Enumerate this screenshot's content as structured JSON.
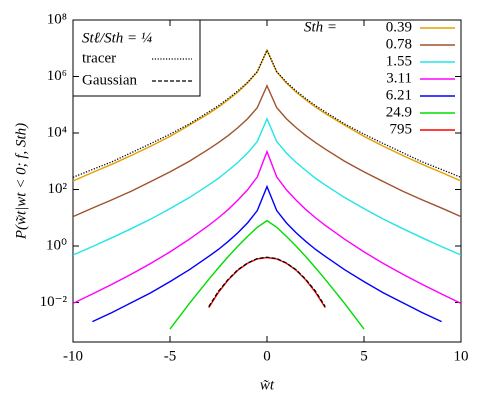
{
  "chart_data": {
    "type": "line",
    "xlabel": "w̃t",
    "ylabel": "P(w̃t|wt < 0; f, Sth)",
    "annotation": "Stℓ/Sth = ¼",
    "legend_title": "Sth =",
    "log_y": true,
    "x": [
      -10,
      -9,
      -8,
      -7,
      -6,
      -5,
      -4,
      -3,
      -2.5,
      -2,
      -1.5,
      -1,
      -0.5,
      0,
      0.5,
      1,
      1.5,
      2,
      2.5,
      3,
      4,
      5,
      6,
      7,
      8,
      9,
      10
    ],
    "series": [
      {
        "name": "0.39",
        "color": "#e69f00",
        "values": [
          200,
          400,
          780,
          1600,
          3400,
          7600,
          19000,
          49000,
          83000,
          150000,
          280000,
          590000,
          1450000,
          8500000,
          1450000,
          590000,
          280000,
          150000,
          83000,
          49000,
          19000,
          7600,
          3400,
          1600,
          780,
          400,
          200
        ]
      },
      {
        "name": "0.78",
        "color": "#a0522d",
        "values": [
          11,
          22,
          43,
          87,
          190,
          420,
          1000,
          2700,
          4600,
          8100,
          15500,
          32000,
          79000,
          470000,
          79000,
          32000,
          15500,
          8100,
          4600,
          2700,
          1000,
          420,
          190,
          87,
          43,
          22,
          11
        ]
      },
      {
        "name": "1.55",
        "color": "#22e5e5",
        "values": [
          0.48,
          0.95,
          1.95,
          4.1,
          8.9,
          21,
          52,
          145,
          250,
          470,
          910,
          1950,
          5000,
          32000,
          5000,
          1950,
          910,
          470,
          250,
          145,
          52,
          21,
          8.9,
          4.1,
          1.95,
          0.95,
          0.48
        ]
      },
      {
        "name": "3.11",
        "color": "#ff00ff",
        "values": [
          0.0093,
          0.02,
          0.044,
          0.1,
          0.24,
          0.62,
          1.74,
          5.4,
          10,
          19.5,
          42,
          98,
          280,
          2200,
          280,
          98,
          42,
          19.5,
          10,
          5.4,
          1.74,
          0.62,
          0.24,
          0.1,
          0.044,
          0.02,
          0.0093
        ]
      },
      {
        "name": "6.21",
        "color": "#0000ff",
        "values": [
          null,
          0.0021,
          0.0044,
          0.0098,
          0.022,
          0.055,
          0.145,
          0.43,
          0.76,
          1.45,
          2.95,
          6.6,
          18,
          126,
          18,
          6.6,
          2.95,
          1.45,
          0.76,
          0.43,
          0.145,
          0.055,
          0.022,
          0.0098,
          0.0044,
          0.0021,
          null
        ]
      },
      {
        "name": "24.9",
        "color": "#00dd00",
        "values": [
          null,
          null,
          null,
          null,
          null,
          0.00115,
          0.0093,
          0.066,
          0.17,
          0.42,
          0.99,
          2.2,
          4.6,
          7.9,
          4.6,
          2.2,
          0.99,
          0.42,
          0.17,
          0.066,
          0.0093,
          0.00115,
          null,
          null,
          null,
          null,
          null
        ]
      },
      {
        "name": "795",
        "color": "#ff0000",
        "values": [
          null,
          null,
          null,
          null,
          null,
          null,
          null,
          0.0066,
          0.023,
          0.063,
          0.14,
          0.245,
          0.35,
          0.39,
          0.35,
          0.245,
          0.14,
          0.063,
          0.023,
          0.0066,
          null,
          null,
          null,
          null,
          null,
          null,
          null
        ]
      },
      {
        "name": "tracer",
        "color": "#000000",
        "dash": "1.2 1.6",
        "values": [
          270,
          510,
          950,
          2000,
          4200,
          9100,
          21000,
          56000,
          93000,
          166000,
          310000,
          630000,
          1500000,
          8500000,
          1500000,
          630000,
          310000,
          166000,
          93000,
          56000,
          21000,
          9100,
          4200,
          2000,
          950,
          510,
          270
        ]
      },
      {
        "name": "Gaussian",
        "color": "#000000",
        "dash": "4 2",
        "values": [
          null,
          null,
          null,
          null,
          null,
          null,
          null,
          0.0072,
          0.025,
          0.066,
          0.145,
          0.25,
          0.36,
          0.4,
          0.36,
          0.25,
          0.145,
          0.066,
          0.025,
          0.0072,
          null,
          null,
          null,
          null,
          null,
          null,
          null
        ]
      }
    ],
    "xlim": [
      -10,
      10
    ],
    "xticks": [
      -10,
      -5,
      0,
      5,
      10
    ],
    "ylim": [
      0.0004,
      100000000
    ],
    "yticks": [
      {
        "value": 0.01,
        "label": "10⁻²"
      },
      {
        "value": 1,
        "label": "10⁰"
      },
      {
        "value": 100,
        "label": "10²"
      },
      {
        "value": 10000,
        "label": "10⁴"
      },
      {
        "value": 1000000,
        "label": "10⁶"
      },
      {
        "value": 100000000,
        "label": "10⁸"
      }
    ]
  }
}
